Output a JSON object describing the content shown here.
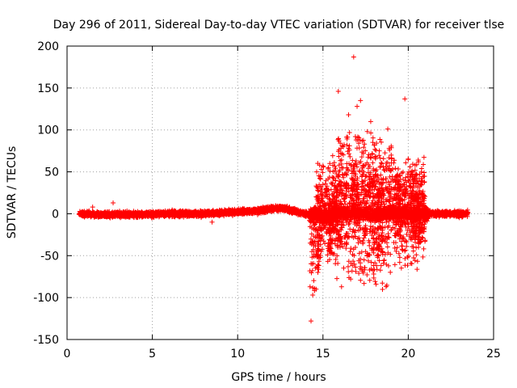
{
  "chart_data": {
    "type": "scatter",
    "title": "Day 296 of 2011, Sidereal Day-to-day VTEC variation (SDTVAR) for receiver tlse",
    "xlabel": "GPS time / hours",
    "ylabel": "SDTVAR / TECUs",
    "xlim": [
      0,
      25
    ],
    "ylim": [
      -150,
      200
    ],
    "xticks": [
      0,
      5,
      10,
      15,
      20,
      25
    ],
    "yticks": [
      -150,
      -100,
      -50,
      0,
      50,
      100,
      150,
      200
    ],
    "grid": true,
    "marker": "+",
    "color": "#ff0000",
    "series": [
      {
        "name": "SDTVAR",
        "baseline_curve": [
          [
            0.7,
            0
          ],
          [
            2,
            -1
          ],
          [
            4,
            -1
          ],
          [
            6,
            0
          ],
          [
            8,
            0
          ],
          [
            9,
            1
          ],
          [
            10,
            2
          ],
          [
            11,
            3
          ],
          [
            12,
            6
          ],
          [
            12.5,
            7
          ],
          [
            13,
            5
          ],
          [
            13.5,
            2
          ],
          [
            14,
            0
          ],
          [
            14.5,
            -2
          ],
          [
            15,
            -3
          ],
          [
            16,
            0
          ],
          [
            17,
            1
          ],
          [
            18,
            -1
          ],
          [
            19,
            1
          ],
          [
            20,
            0
          ],
          [
            21,
            0
          ],
          [
            22,
            0
          ],
          [
            23,
            0
          ],
          [
            23.5,
            0
          ]
        ],
        "notable_points": [
          [
            2.7,
            13
          ],
          [
            16.8,
            187
          ],
          [
            19.8,
            137
          ],
          [
            15.9,
            146
          ],
          [
            17.2,
            135
          ],
          [
            16.5,
            118
          ],
          [
            17.0,
            128
          ],
          [
            18.8,
            101
          ],
          [
            14.3,
            -128
          ],
          [
            14.4,
            -97
          ],
          [
            14.6,
            -90
          ],
          [
            17.1,
            -71
          ],
          [
            18.7,
            -87
          ],
          [
            20.6,
            62
          ],
          [
            20.4,
            58
          ],
          [
            15.0,
            57
          ],
          [
            20.0,
            40
          ],
          [
            20.6,
            -40
          ],
          [
            19.5,
            -52
          ],
          [
            21.0,
            -10
          ],
          [
            22.0,
            -3
          ],
          [
            1.5,
            8
          ],
          [
            8.5,
            -10
          ],
          [
            15.6,
            -48
          ],
          [
            16.0,
            -40
          ],
          [
            17.5,
            -45
          ],
          [
            18.2,
            -52
          ],
          [
            18.5,
            -45
          ],
          [
            14.7,
            -70
          ],
          [
            14.9,
            -20
          ],
          [
            16.2,
            80
          ],
          [
            16.9,
            92
          ],
          [
            17.6,
            98
          ],
          [
            18.0,
            82
          ],
          [
            15.4,
            60
          ],
          [
            16.4,
            55
          ],
          [
            19.0,
            70
          ],
          [
            19.3,
            45
          ],
          [
            18.3,
            75
          ],
          [
            17.8,
            110
          ]
        ]
      }
    ]
  }
}
